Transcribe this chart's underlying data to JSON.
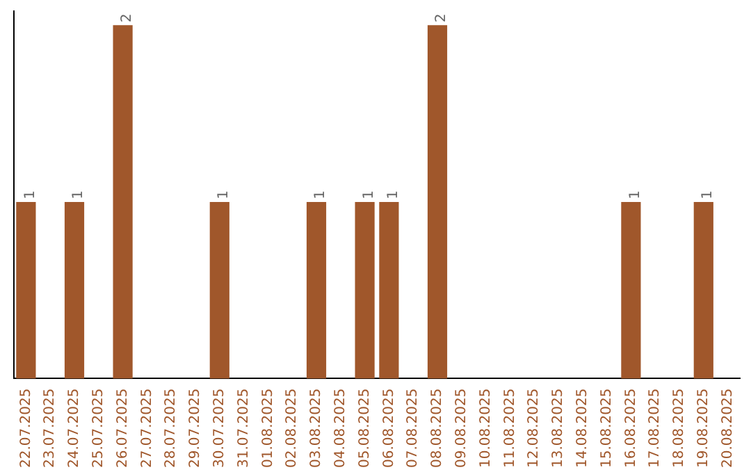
{
  "chart_data": {
    "type": "bar",
    "categories": [
      "22.07.2025",
      "23.07.2025",
      "24.07.2025",
      "25.07.2025",
      "26.07.2025",
      "27.07.2025",
      "28.07.2025",
      "29.07.2025",
      "30.07.2025",
      "31.07.2025",
      "01.08.2025",
      "02.08.2025",
      "03.08.2025",
      "04.08.2025",
      "05.08.2025",
      "06.08.2025",
      "07.08.2025",
      "08.08.2025",
      "09.08.2025",
      "10.08.2025",
      "11.08.2025",
      "12.08.2025",
      "13.08.2025",
      "14.08.2025",
      "15.08.2025",
      "16.08.2025",
      "17.08.2025",
      "18.08.2025",
      "19.08.2025",
      "20.08.2025"
    ],
    "values": [
      1,
      0,
      1,
      0,
      2,
      0,
      0,
      0,
      1,
      0,
      0,
      0,
      1,
      0,
      1,
      1,
      0,
      2,
      0,
      0,
      0,
      0,
      0,
      0,
      0,
      1,
      0,
      0,
      1,
      0
    ],
    "value_labels": [
      "1",
      null,
      "1",
      null,
      "2",
      null,
      null,
      null,
      "1",
      null,
      null,
      null,
      "1",
      null,
      "1",
      "1",
      null,
      "2",
      null,
      null,
      null,
      null,
      null,
      null,
      null,
      "1",
      null,
      null,
      "1",
      null
    ],
    "color": "#a0572b",
    "ylim": [
      0,
      2.08
    ],
    "tick_labels": "x",
    "grid": false,
    "legend": false
  }
}
